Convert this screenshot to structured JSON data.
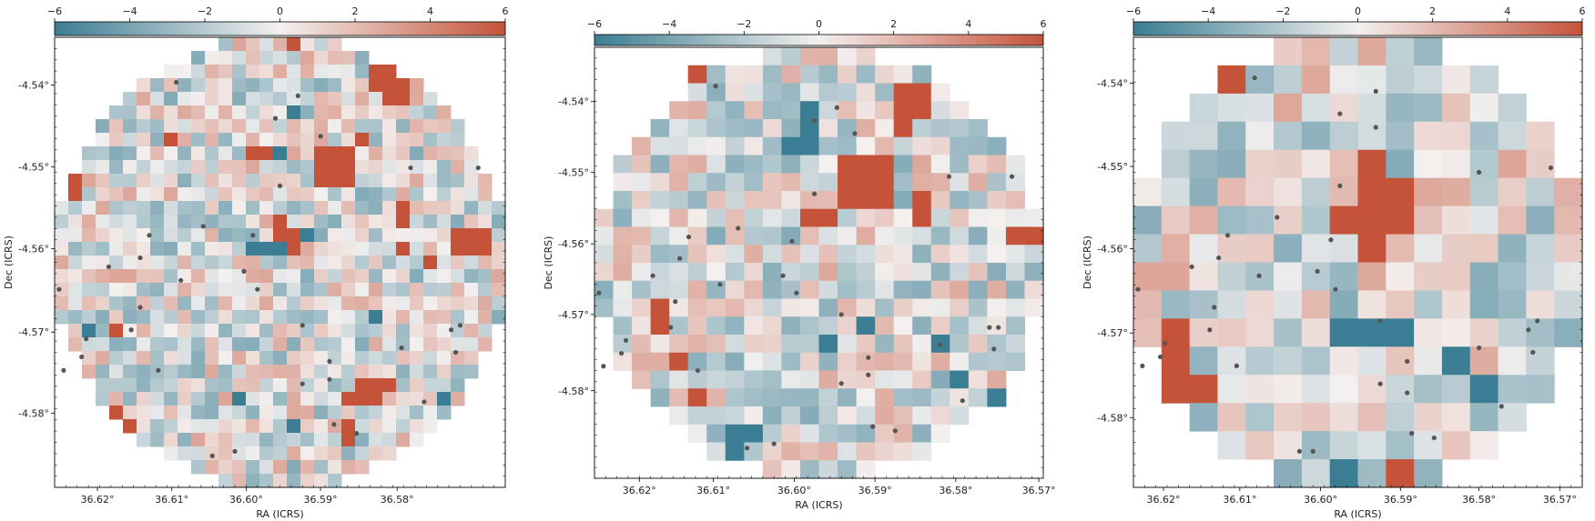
{
  "chart_data": [
    {
      "type": "heatmap",
      "panel": "left",
      "xlabel": "RA (ICRS)",
      "ylabel": "Dec (ICRS)",
      "xticks": [
        "36.62°",
        "36.61°",
        "36.60°",
        "36.59°",
        "36.58°"
      ],
      "yticks": [
        "-4.54°",
        "-4.55°",
        "-4.56°",
        "-4.57°",
        "-4.58°"
      ],
      "colorbar": {
        "ticks": [
          "−6",
          "−4",
          "−2",
          "0",
          "2",
          "4",
          "6"
        ],
        "range": [
          -6,
          6
        ],
        "placement": "top"
      },
      "grid_n": 33,
      "hot_cells": [
        [
          17,
          0
        ],
        [
          23,
          2
        ],
        [
          24,
          2
        ],
        [
          23,
          3
        ],
        [
          24,
          3
        ],
        [
          25,
          3
        ],
        [
          24,
          4
        ],
        [
          25,
          4
        ],
        [
          8,
          7
        ],
        [
          22,
          7
        ],
        [
          14,
          8
        ],
        [
          15,
          8
        ],
        [
          19,
          8
        ],
        [
          20,
          8
        ],
        [
          21,
          8
        ],
        [
          19,
          9
        ],
        [
          20,
          9
        ],
        [
          21,
          9
        ],
        [
          1,
          10
        ],
        [
          19,
          10
        ],
        [
          20,
          10
        ],
        [
          21,
          10
        ],
        [
          1,
          11
        ],
        [
          25,
          12
        ],
        [
          16,
          13
        ],
        [
          25,
          13
        ],
        [
          16,
          14
        ],
        [
          17,
          14
        ],
        [
          29,
          14
        ],
        [
          30,
          14
        ],
        [
          31,
          14
        ],
        [
          17,
          15
        ],
        [
          25,
          15
        ],
        [
          29,
          15
        ],
        [
          30,
          15
        ],
        [
          31,
          15
        ],
        [
          27,
          16
        ],
        [
          4,
          21
        ],
        [
          22,
          25
        ],
        [
          23,
          25
        ],
        [
          24,
          25
        ],
        [
          21,
          26
        ],
        [
          22,
          26
        ],
        [
          23,
          26
        ],
        [
          4,
          27
        ],
        [
          5,
          28
        ],
        [
          21,
          28
        ],
        [
          21,
          29
        ]
      ],
      "cold_cells": [
        [
          17,
          5
        ],
        [
          14,
          8
        ],
        [
          15,
          8
        ],
        [
          16,
          8
        ],
        [
          18,
          14
        ],
        [
          14,
          15
        ],
        [
          15,
          15
        ],
        [
          16,
          15
        ],
        [
          23,
          20
        ],
        [
          2,
          21
        ],
        [
          13,
          26
        ],
        [
          28,
          26
        ],
        [
          17,
          28
        ]
      ],
      "points": [
        [
          0.27,
          0.9
        ],
        [
          0.54,
          0.87
        ],
        [
          0.49,
          0.82
        ],
        [
          0.59,
          0.78
        ],
        [
          0.79,
          0.71
        ],
        [
          0.94,
          0.71
        ],
        [
          0.5,
          0.67
        ],
        [
          0.33,
          0.58
        ],
        [
          0.21,
          0.56
        ],
        [
          0.44,
          0.56
        ],
        [
          0.19,
          0.51
        ],
        [
          0.42,
          0.48
        ],
        [
          0.12,
          0.49
        ],
        [
          0.28,
          0.46
        ],
        [
          0.01,
          0.44
        ],
        [
          0.45,
          0.44
        ],
        [
          0.19,
          0.4
        ],
        [
          0.55,
          0.36
        ],
        [
          0.17,
          0.35
        ],
        [
          0.07,
          0.33
        ],
        [
          0.88,
          0.35
        ],
        [
          0.9,
          0.36
        ],
        [
          0.77,
          0.31
        ],
        [
          0.06,
          0.29
        ],
        [
          0.61,
          0.28
        ],
        [
          0.89,
          0.3
        ],
        [
          0.02,
          0.26
        ],
        [
          0.23,
          0.26
        ],
        [
          0.55,
          0.23
        ],
        [
          0.61,
          0.24
        ],
        [
          0.82,
          0.19
        ],
        [
          0.62,
          0.14
        ],
        [
          0.67,
          0.12
        ],
        [
          0.4,
          0.08
        ],
        [
          0.35,
          0.07
        ]
      ]
    },
    {
      "type": "heatmap",
      "panel": "middle",
      "xlabel": "RA (ICRS)",
      "ylabel": "Dec (ICRS)",
      "xticks": [
        "36.62°",
        "36.61°",
        "36.60°",
        "36.59°",
        "36.58°",
        "36.57°"
      ],
      "yticks": [
        "-4.54°",
        "-4.55°",
        "-4.56°",
        "-4.57°",
        "-4.58°"
      ],
      "colorbar": {
        "ticks": [
          "−6",
          "−4",
          "−2",
          "0",
          "2",
          "4",
          "6"
        ],
        "range": [
          -6,
          6
        ],
        "placement": "top"
      },
      "grid_n": 24,
      "hot_cells": [
        [
          5,
          1
        ],
        [
          16,
          2
        ],
        [
          17,
          2
        ],
        [
          16,
          3
        ],
        [
          17,
          3
        ],
        [
          16,
          4
        ],
        [
          13,
          6
        ],
        [
          14,
          6
        ],
        [
          15,
          6
        ],
        [
          13,
          7
        ],
        [
          14,
          7
        ],
        [
          15,
          7
        ],
        [
          13,
          8
        ],
        [
          14,
          8
        ],
        [
          15,
          8
        ],
        [
          17,
          8
        ],
        [
          11,
          9
        ],
        [
          12,
          9
        ],
        [
          17,
          9
        ],
        [
          22,
          10
        ],
        [
          23,
          10
        ],
        [
          3,
          14
        ],
        [
          3,
          15
        ],
        [
          4,
          17
        ],
        [
          5,
          19
        ]
      ],
      "cold_cells": [
        [
          11,
          3
        ],
        [
          11,
          4
        ],
        [
          10,
          5
        ],
        [
          11,
          5
        ],
        [
          14,
          15
        ],
        [
          12,
          16
        ],
        [
          18,
          16
        ],
        [
          19,
          18
        ],
        [
          7,
          21
        ],
        [
          8,
          21
        ],
        [
          7,
          22
        ],
        [
          21,
          19
        ]
      ],
      "points": [
        [
          0.27,
          0.91
        ],
        [
          0.54,
          0.86
        ],
        [
          0.49,
          0.83
        ],
        [
          0.58,
          0.8
        ],
        [
          0.79,
          0.7
        ],
        [
          0.93,
          0.7
        ],
        [
          0.49,
          0.66
        ],
        [
          0.32,
          0.58
        ],
        [
          0.21,
          0.56
        ],
        [
          0.44,
          0.55
        ],
        [
          0.19,
          0.51
        ],
        [
          0.42,
          0.47
        ],
        [
          0.13,
          0.47
        ],
        [
          0.28,
          0.45
        ],
        [
          0.01,
          0.43
        ],
        [
          0.45,
          0.43
        ],
        [
          0.18,
          0.41
        ],
        [
          0.55,
          0.38
        ],
        [
          0.17,
          0.35
        ],
        [
          0.07,
          0.32
        ],
        [
          0.88,
          0.35
        ],
        [
          0.9,
          0.35
        ],
        [
          0.77,
          0.31
        ],
        [
          0.06,
          0.29
        ],
        [
          0.61,
          0.28
        ],
        [
          0.89,
          0.3
        ],
        [
          0.02,
          0.26
        ],
        [
          0.23,
          0.25
        ],
        [
          0.55,
          0.22
        ],
        [
          0.61,
          0.24
        ],
        [
          0.82,
          0.18
        ],
        [
          0.62,
          0.12
        ],
        [
          0.67,
          0.11
        ],
        [
          0.4,
          0.08
        ],
        [
          0.34,
          0.07
        ]
      ]
    },
    {
      "type": "heatmap",
      "panel": "right",
      "xlabel": "RA (ICRS)",
      "ylabel": "Dec (ICRS)",
      "xticks": [
        "36.62°",
        "36.61°",
        "36.60°",
        "36.59°",
        "36.58°",
        "36.57°"
      ],
      "yticks": [
        "-4.54°",
        "-4.55°",
        "-4.56°",
        "-4.57°",
        "-4.58°"
      ],
      "colorbar": {
        "ticks": [
          "−6",
          "−4",
          "−2",
          "0",
          "2",
          "4",
          "6"
        ],
        "range": [
          -6,
          6
        ],
        "placement": "top"
      },
      "grid_n": 16,
      "hot_cells": [
        [
          3,
          1
        ],
        [
          8,
          4
        ],
        [
          8,
          5
        ],
        [
          9,
          5
        ],
        [
          7,
          6
        ],
        [
          8,
          6
        ],
        [
          9,
          6
        ],
        [
          8,
          7
        ],
        [
          1,
          10
        ],
        [
          1,
          11
        ],
        [
          1,
          12
        ],
        [
          2,
          12
        ],
        [
          9,
          15
        ]
      ],
      "cold_cells": [
        [
          7,
          10
        ],
        [
          8,
          10
        ],
        [
          9,
          10
        ],
        [
          11,
          11
        ],
        [
          12,
          12
        ],
        [
          7,
          15
        ]
      ],
      "points": [
        [
          0.27,
          0.91
        ],
        [
          0.54,
          0.88
        ],
        [
          0.46,
          0.83
        ],
        [
          0.54,
          0.8
        ],
        [
          0.77,
          0.7
        ],
        [
          0.93,
          0.71
        ],
        [
          0.46,
          0.67
        ],
        [
          0.32,
          0.6
        ],
        [
          0.21,
          0.56
        ],
        [
          0.44,
          0.55
        ],
        [
          0.19,
          0.51
        ],
        [
          0.41,
          0.48
        ],
        [
          0.13,
          0.49
        ],
        [
          0.28,
          0.47
        ],
        [
          0.01,
          0.44
        ],
        [
          0.45,
          0.44
        ],
        [
          0.18,
          0.4
        ],
        [
          0.55,
          0.37
        ],
        [
          0.17,
          0.35
        ],
        [
          0.07,
          0.32
        ],
        [
          0.88,
          0.35
        ],
        [
          0.9,
          0.37
        ],
        [
          0.77,
          0.31
        ],
        [
          0.06,
          0.29
        ],
        [
          0.61,
          0.28
        ],
        [
          0.89,
          0.3
        ],
        [
          0.02,
          0.27
        ],
        [
          0.23,
          0.27
        ],
        [
          0.55,
          0.23
        ],
        [
          0.61,
          0.21
        ],
        [
          0.82,
          0.18
        ],
        [
          0.62,
          0.12
        ],
        [
          0.67,
          0.11
        ],
        [
          0.4,
          0.08
        ],
        [
          0.37,
          0.08
        ]
      ]
    }
  ],
  "colors": {
    "cmap_low": "#3b7d93",
    "cmap_mid": "#f3f0ef",
    "cmap_high": "#c4533a",
    "point": "#555555"
  }
}
